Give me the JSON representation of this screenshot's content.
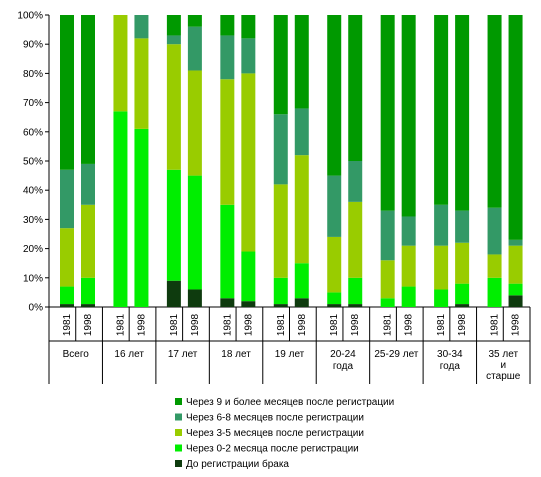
{
  "chart_data": {
    "type": "bar",
    "stacked": true,
    "percent": true,
    "ylim": [
      0,
      100
    ],
    "y_ticks": [
      "0%",
      "10%",
      "20%",
      "30%",
      "40%",
      "50%",
      "60%",
      "70%",
      "80%",
      "90%",
      "100%"
    ],
    "grid": false,
    "legend_position": "bottom",
    "groups": [
      {
        "label": "Всего",
        "years": [
          "1981",
          "1998"
        ]
      },
      {
        "label": "16 лет",
        "years": [
          "1981",
          "1998"
        ]
      },
      {
        "label": "17 лет",
        "years": [
          "1981",
          "1998"
        ]
      },
      {
        "label": "18 лет",
        "years": [
          "1981",
          "1998"
        ]
      },
      {
        "label": "19 лет",
        "years": [
          "1981",
          "1998"
        ]
      },
      {
        "label": "20-24 года",
        "years": [
          "1981",
          "1998"
        ]
      },
      {
        "label": "25-29 лет",
        "years": [
          "1981",
          "1998"
        ]
      },
      {
        "label": "30-34 года",
        "years": [
          "1981",
          "1998"
        ]
      },
      {
        "label": "35 лет и старше",
        "years": [
          "1981",
          "1998"
        ]
      }
    ],
    "series": [
      {
        "name": "До регистрации брака",
        "color": "#0e3b0e",
        "values": [
          1,
          1,
          0,
          0,
          9,
          6,
          3,
          2,
          1,
          3,
          1,
          1,
          0,
          0,
          0,
          1,
          0,
          4
        ]
      },
      {
        "name": "Через 0-2 месяца после регистрации",
        "color": "#00ee00",
        "values": [
          6,
          9,
          67,
          61,
          38,
          39,
          32,
          17,
          9,
          12,
          4,
          9,
          3,
          7,
          6,
          7,
          10,
          4
        ]
      },
      {
        "name": "Через 3-5 месяцев после регистрации",
        "color": "#99cc00",
        "values": [
          20,
          25,
          33,
          31,
          43,
          36,
          43,
          61,
          32,
          37,
          19,
          26,
          13,
          14,
          15,
          14,
          8,
          13
        ]
      },
      {
        "name": "Через 6-8 месяцев после регистрации",
        "color": "#339966",
        "values": [
          20,
          14,
          0,
          8,
          3,
          15,
          15,
          12,
          24,
          16,
          21,
          14,
          17,
          10,
          14,
          11,
          16,
          2
        ]
      },
      {
        "name": "Через 9 и более месяцев после регистрации",
        "color": "#009900",
        "values": [
          53,
          51,
          0,
          0,
          7,
          4,
          7,
          8,
          34,
          32,
          55,
          50,
          67,
          69,
          65,
          67,
          66,
          77
        ]
      }
    ]
  }
}
